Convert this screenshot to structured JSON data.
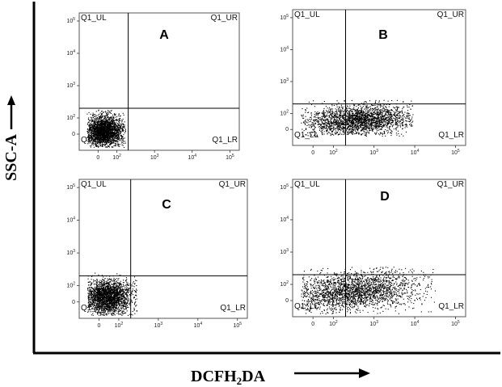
{
  "figure": {
    "y_axis_title": "SSC-A",
    "x_axis_title": "DCFH",
    "x_axis_title_sub": "2",
    "x_axis_title_end": "DA"
  },
  "chart_data": [
    {
      "type": "scatter",
      "panel": "A",
      "x_scale": "log",
      "y_scale": "log",
      "x_ticks": [
        "0",
        "10^2",
        "10^3",
        "10^4",
        "10^5"
      ],
      "y_ticks": [
        "0",
        "10^2",
        "10^3",
        "10^4",
        "10^5"
      ],
      "gates": {
        "x": 200,
        "y": 200
      },
      "quadrant_labels": [
        "Q1_UL",
        "Q1_UR",
        "Q1_LR",
        "Q1_LL"
      ],
      "population": {
        "x_range": [
          -50,
          150
        ],
        "y_range": [
          -60,
          130
        ],
        "density": "high",
        "center_x": 30,
        "center_y": 20
      }
    },
    {
      "type": "scatter",
      "panel": "B",
      "x_scale": "log",
      "y_scale": "log",
      "x_ticks": [
        "0",
        "10^2",
        "10^3",
        "10^4",
        "10^5"
      ],
      "y_ticks": [
        "0",
        "10^2",
        "10^3",
        "10^4",
        "10^5"
      ],
      "gates": {
        "x": 200,
        "y": 200
      },
      "quadrant_labels": [
        "Q1_UL",
        "Q1_UR",
        "Q1_LR",
        "Q1_LL"
      ],
      "population": {
        "x_range": [
          -50,
          8000
        ],
        "y_range": [
          -20,
          200
        ],
        "density": "high",
        "center_x": 450,
        "center_y": 60
      }
    },
    {
      "type": "scatter",
      "panel": "C",
      "x_scale": "log",
      "y_scale": "log",
      "x_ticks": [
        "0",
        "10^2",
        "10^3",
        "10^4",
        "10^5"
      ],
      "y_ticks": [
        "0",
        "10^2",
        "10^3",
        "10^4",
        "10^5"
      ],
      "gates": {
        "x": 200,
        "y": 200
      },
      "quadrant_labels": [
        "Q1_UL",
        "Q1_UR",
        "Q1_LR",
        "Q1_LL"
      ],
      "population": {
        "x_range": [
          -50,
          250
        ],
        "y_range": [
          -60,
          180
        ],
        "density": "high",
        "center_x": 40,
        "center_y": 30
      }
    },
    {
      "type": "scatter",
      "panel": "D",
      "x_scale": "log",
      "y_scale": "log",
      "x_ticks": [
        "0",
        "10^2",
        "10^3",
        "10^4",
        "10^5"
      ],
      "y_ticks": [
        "0",
        "10^2",
        "10^3",
        "10^4",
        "10^5"
      ],
      "gates": {
        "x": 200,
        "y": 200
      },
      "quadrant_labels": [
        "Q1_UL",
        "Q1_UR",
        "Q1_LR",
        "Q1_LL"
      ],
      "population": {
        "x_range": [
          -50,
          30000
        ],
        "y_range": [
          -60,
          250
        ],
        "density": "high",
        "center_x": 300,
        "center_y": 60
      }
    }
  ]
}
